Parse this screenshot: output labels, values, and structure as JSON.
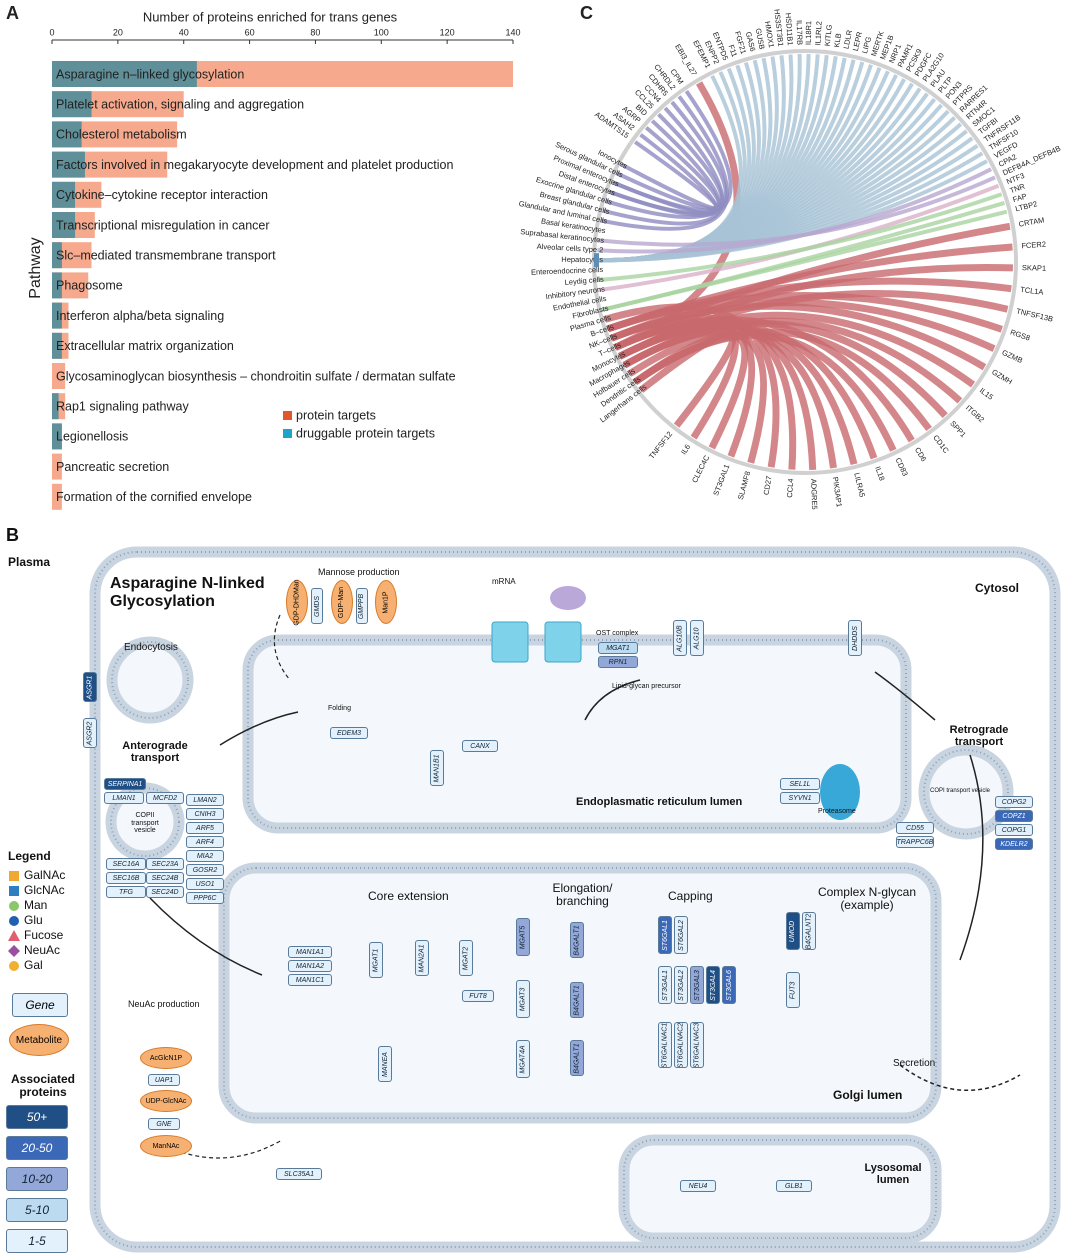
{
  "chart_data": [
    {
      "type": "bar",
      "orientation": "horizontal",
      "panel_label": "A",
      "title": "Number of proteins enriched for trans genes",
      "y_label": "Pathway",
      "categories": [
        "Asparagine n–linked glycosylation",
        "Platelet activation, signaling and aggregation",
        "Cholesterol metabolism",
        "Factors involved in megakaryocyte development and platelet production",
        "Cytokine–cytokine receptor interaction",
        "Transcriptional misregulation in cancer",
        "Slc–mediated transmembrane transport",
        "Phagosome",
        "Interferon alpha/beta signaling",
        "Extracellular matrix organization",
        "Glycosaminoglycan biosynthesis – chondroitin sulfate / dermatan sulfate",
        "Rap1 signaling pathway",
        "Legionellosis",
        "Pancreatic secretion",
        "Formation of the cornified envelope"
      ],
      "series": [
        {
          "name": "protein targets",
          "color": "#f6a98c",
          "marker_color": "#e2552d",
          "values": [
            140,
            40,
            38,
            35,
            15,
            13,
            12,
            11,
            5,
            5,
            4,
            4,
            3,
            3,
            3
          ]
        },
        {
          "name": "druggable protein targets",
          "color": "#5f8f99",
          "marker_color": "#1fa3c9",
          "values": [
            44,
            12,
            9,
            10,
            7,
            7,
            3,
            3,
            3,
            3,
            0,
            2,
            3,
            0,
            0
          ]
        }
      ],
      "overlap": true,
      "xlim": [
        0,
        140
      ],
      "xticks": [
        0,
        20,
        40,
        60,
        80,
        100,
        120,
        140
      ],
      "legend": "lower-right"
    },
    {
      "type": "chord",
      "panel_label": "C",
      "cells": [
        "Ionocytes",
        "Serous glandular cells",
        "Proximal enterocytes",
        "Distal enterocytes",
        "Exocrine glandular cells",
        "Breast glandular cells",
        "Glandular and luminal cells",
        "Basal keratinocytes",
        "Suprabasal keratinocytes",
        "Alveolar cells type 2",
        "Hepatocytes",
        "Enteroendocrine cells",
        "Leydig cells",
        "Inhibitory neurons",
        "Endothelial cells",
        "Fibroblasts",
        "Plasma cells",
        "B–cells",
        "NK–cells",
        "T–cells",
        "Monocytes",
        "Macrophages",
        "Hofbauer cells",
        "Dendritic cells",
        "Langerhans cells"
      ],
      "cell_color": "#5b8fb8",
      "genes": [
        {
          "label": "ADAMTS15",
          "color": "#8e8cc0",
          "cell": 0
        },
        {
          "label": "ASAH2",
          "color": "#8e8cc0",
          "cell": 2
        },
        {
          "label": "AGRP",
          "color": "#8e8cc0",
          "cell": 1
        },
        {
          "label": "BID",
          "color": "#8e8cc0",
          "cell": 3
        },
        {
          "label": "CCL25",
          "color": "#8e8cc0",
          "cell": 2
        },
        {
          "label": "CCN4",
          "color": "#8e8cc0",
          "cell": 5
        },
        {
          "label": "CDHR5",
          "color": "#8e8cc0",
          "cell": 3
        },
        {
          "label": "CHRDL2",
          "color": "#8e8cc0",
          "cell": 6
        },
        {
          "label": "CPM",
          "color": "#8e8cc0",
          "cell": 4
        },
        {
          "label": "EBI3_IL27",
          "color": "#c8696d",
          "cell": 19
        },
        {
          "label": "EFEMP1",
          "color": "#a8c3d6",
          "cell": 10
        },
        {
          "label": "ENPP2",
          "color": "#a8c3d6",
          "cell": 10
        },
        {
          "label": "ENTPD5",
          "color": "#a8c3d6",
          "cell": 10
        },
        {
          "label": "F11",
          "color": "#a8c3d6",
          "cell": 10
        },
        {
          "label": "FGF21",
          "color": "#a8c3d6",
          "cell": 10
        },
        {
          "label": "GAS6",
          "color": "#a8c3d6",
          "cell": 10
        },
        {
          "label": "GUSB",
          "color": "#a8c3d6",
          "cell": 10
        },
        {
          "label": "HMOX1",
          "color": "#a8c3d6",
          "cell": 10
        },
        {
          "label": "HS3ST3B1",
          "color": "#a8c3d6",
          "cell": 10
        },
        {
          "label": "HSD11B1",
          "color": "#a8c3d6",
          "cell": 10
        },
        {
          "label": "IL17RB",
          "color": "#a8c3d6",
          "cell": 10
        },
        {
          "label": "IL18R1",
          "color": "#a8c3d6",
          "cell": 10
        },
        {
          "label": "IL1RL2",
          "color": "#a8c3d6",
          "cell": 10
        },
        {
          "label": "KITLG",
          "color": "#a8c3d6",
          "cell": 10
        },
        {
          "label": "KLB",
          "color": "#a8c3d6",
          "cell": 10
        },
        {
          "label": "LDLR",
          "color": "#a8c3d6",
          "cell": 10
        },
        {
          "label": "LEPR",
          "color": "#a8c3d6",
          "cell": 10
        },
        {
          "label": "LIPG",
          "color": "#a8c3d6",
          "cell": 10
        },
        {
          "label": "MERTK",
          "color": "#a8c3d6",
          "cell": 10
        },
        {
          "label": "MEP1B",
          "color": "#a8c3d6",
          "cell": 10
        },
        {
          "label": "NRP1",
          "color": "#a8c3d6",
          "cell": 10
        },
        {
          "label": "PAMR1",
          "color": "#a8c3d6",
          "cell": 10
        },
        {
          "label": "PCSK9",
          "color": "#a8c3d6",
          "cell": 10
        },
        {
          "label": "PDGFC",
          "color": "#a8c3d6",
          "cell": 10
        },
        {
          "label": "PLA2G10",
          "color": "#a8c3d6",
          "cell": 10
        },
        {
          "label": "PLAU",
          "color": "#a8c3d6",
          "cell": 10
        },
        {
          "label": "PLTP",
          "color": "#a8c3d6",
          "cell": 10
        },
        {
          "label": "PON3",
          "color": "#a8c3d6",
          "cell": 10
        },
        {
          "label": "PTPRS",
          "color": "#a8c3d6",
          "cell": 10
        },
        {
          "label": "RARRES1",
          "color": "#a8c3d6",
          "cell": 10
        },
        {
          "label": "RTN4R",
          "color": "#a8c3d6",
          "cell": 10
        },
        {
          "label": "SMOC1",
          "color": "#a8c3d6",
          "cell": 10
        },
        {
          "label": "TGFBI",
          "color": "#a8c3d6",
          "cell": 10
        },
        {
          "label": "TNFRSF11B",
          "color": "#a8c3d6",
          "cell": 10
        },
        {
          "label": "TNFSF10",
          "color": "#a8c3d6",
          "cell": 10
        },
        {
          "label": "VEGFD",
          "color": "#a8c3d6",
          "cell": 10
        },
        {
          "label": "CPA2",
          "color": "#b8a6d0",
          "cell": 9
        },
        {
          "label": "DEFB4A_DEFB4B",
          "color": "#b8a6d0",
          "cell": 8
        },
        {
          "label": "NTF3",
          "color": "#d9b0c8",
          "cell": 13
        },
        {
          "label": "TNR",
          "color": "#a9d3a0",
          "cell": 12
        },
        {
          "label": "FAP",
          "color": "#a9d3a0",
          "cell": 15
        },
        {
          "label": "LTBP2",
          "color": "#a9d3a0",
          "cell": 15
        },
        {
          "label": "CRTAM",
          "color": "#c8696d",
          "cell": 18
        },
        {
          "label": "FCER2",
          "color": "#c8696d",
          "cell": 17
        },
        {
          "label": "SKAP1",
          "color": "#c8696d",
          "cell": 19
        },
        {
          "label": "TCL1A",
          "color": "#c8696d",
          "cell": 17
        },
        {
          "label": "TNFSF13B",
          "color": "#c8696d",
          "cell": 20
        },
        {
          "label": "RGS8",
          "color": "#c8696d",
          "cell": 17
        },
        {
          "label": "GZMB",
          "color": "#c8696d",
          "cell": 18
        },
        {
          "label": "GZMH",
          "color": "#c8696d",
          "cell": 18
        },
        {
          "label": "IL15",
          "color": "#c8696d",
          "cell": 20
        },
        {
          "label": "ITGB2",
          "color": "#c8696d",
          "cell": 21
        },
        {
          "label": "SPP1",
          "color": "#c8696d",
          "cell": 21
        },
        {
          "label": "CD1C",
          "color": "#c8696d",
          "cell": 23
        },
        {
          "label": "CD6",
          "color": "#c8696d",
          "cell": 19
        },
        {
          "label": "CD83",
          "color": "#c8696d",
          "cell": 23
        },
        {
          "label": "IL18",
          "color": "#c8696d",
          "cell": 20
        },
        {
          "label": "LILRA5",
          "color": "#c8696d",
          "cell": 20
        },
        {
          "label": "PIK3AP1",
          "color": "#c8696d",
          "cell": 21
        },
        {
          "label": "ADGRE5",
          "color": "#c8696d",
          "cell": 19
        },
        {
          "label": "CCL4",
          "color": "#c8696d",
          "cell": 18
        },
        {
          "label": "CD27",
          "color": "#c8696d",
          "cell": 16
        },
        {
          "label": "SLAMF8",
          "color": "#c8696d",
          "cell": 22
        },
        {
          "label": "ST3GAL1",
          "color": "#c8696d",
          "cell": 19
        },
        {
          "label": "CLEC4C",
          "color": "#c8696d",
          "cell": 23
        },
        {
          "label": "IL6",
          "color": "#c8696d",
          "cell": 20
        },
        {
          "label": "TNFSF12",
          "color": "#c8696d",
          "cell": 24
        }
      ]
    }
  ],
  "diagram": {
    "panel_label": "B",
    "title": "Asparagine N-linked Glycosylation",
    "labels": [
      "Plasma",
      "Cytosol",
      "Endocytosis",
      "Mannose production",
      "mRNA",
      "OST complex",
      "Folding",
      "Lipid-glycan precursor",
      "Proteasome",
      "Anterograde transport",
      "COPII transport vesicle",
      "Endoplasmatic reticulum lumen",
      "Retrograde transport",
      "COPI transport vesicle",
      "Core extension",
      "Elongation/ branching",
      "Capping",
      "Complex N-glycan (example)",
      "NeuAc production",
      "Secretion",
      "Golgi lumen",
      "Lysosomal lumen"
    ],
    "metabolites": [
      "GDP-DHDMan",
      "GDP-Man",
      "Man1P",
      "AcGlcN1P",
      "UDP-GlcNAc",
      "ManNAc"
    ],
    "genes": [
      {
        "label": "ASGR1",
        "level": 0
      },
      {
        "label": "ASGR2",
        "level": 4
      },
      {
        "label": "GMDS",
        "level": 4
      },
      {
        "label": "GMPPB",
        "level": 4
      },
      {
        "label": "MGAT1",
        "level": 3
      },
      {
        "label": "RPN1",
        "level": 2
      },
      {
        "label": "ALG10B",
        "level": 4
      },
      {
        "label": "ALG10",
        "level": 4
      },
      {
        "label": "DHDDS",
        "level": 4
      },
      {
        "label": "EDEM3",
        "level": 4
      },
      {
        "label": "MAN1B1",
        "level": 4
      },
      {
        "label": "CANX",
        "level": 4
      },
      {
        "label": "SEL1L",
        "level": 4
      },
      {
        "label": "SYVN1",
        "level": 4
      },
      {
        "label": "SERPINA1",
        "level": 0
      },
      {
        "label": "LMAN1",
        "level": 4
      },
      {
        "label": "MCFD2",
        "level": 4
      },
      {
        "label": "LMAN2",
        "level": 4
      },
      {
        "label": "CNIH3",
        "level": 4
      },
      {
        "label": "ARF5",
        "level": 4
      },
      {
        "label": "ARF4",
        "level": 4
      },
      {
        "label": "MIA2",
        "level": 4
      },
      {
        "label": "GOSR2",
        "level": 4
      },
      {
        "label": "USO1",
        "level": 4
      },
      {
        "label": "PPP6C",
        "level": 4
      },
      {
        "label": "SEC16A",
        "level": 4
      },
      {
        "label": "SEC16B",
        "level": 4
      },
      {
        "label": "TFG",
        "level": 4
      },
      {
        "label": "SEC23A",
        "level": 4
      },
      {
        "label": "SEC24B",
        "level": 4
      },
      {
        "label": "SEC24D",
        "level": 4
      },
      {
        "label": "COPG2",
        "level": 4
      },
      {
        "label": "COPZ1",
        "level": 1
      },
      {
        "label": "COPG1",
        "level": 4
      },
      {
        "label": "KDELR2",
        "level": 1
      },
      {
        "label": "CD55",
        "level": 4
      },
      {
        "label": "TRAPPC6B",
        "level": 4
      },
      {
        "label": "MAN1A1",
        "level": 4
      },
      {
        "label": "MAN1A2",
        "level": 4
      },
      {
        "label": "MAN1C1",
        "level": 4
      },
      {
        "label": "MGAT1",
        "level": 4
      },
      {
        "label": "MAN2A1",
        "level": 4
      },
      {
        "label": "MGAT2",
        "level": 4
      },
      {
        "label": "FUT8",
        "level": 4
      },
      {
        "label": "MGAT5",
        "level": 2
      },
      {
        "label": "MGAT3",
        "level": 4
      },
      {
        "label": "MGAT4A",
        "level": 4
      },
      {
        "label": "B4GALT1",
        "level": 2
      },
      {
        "label": "B4GALT1",
        "level": 2
      },
      {
        "label": "B4GALT1",
        "level": 2
      },
      {
        "label": "ST6GAL1",
        "level": 1
      },
      {
        "label": "ST6GAL2",
        "level": 4
      },
      {
        "label": "ST3GAL1",
        "level": 4
      },
      {
        "label": "ST3GAL2",
        "level": 4
      },
      {
        "label": "ST3GAL3",
        "level": 2
      },
      {
        "label": "ST3GAL4",
        "level": 0
      },
      {
        "label": "ST3GAL6",
        "level": 1
      },
      {
        "label": "ST6GALNAC1",
        "level": 4
      },
      {
        "label": "ST6GALNAC2",
        "level": 4
      },
      {
        "label": "ST6GALNAC3",
        "level": 4
      },
      {
        "label": "UMOD",
        "level": 0
      },
      {
        "label": "B4GALNT2",
        "level": 4
      },
      {
        "label": "FUT3",
        "level": 4
      },
      {
        "label": "MANEA",
        "level": 4
      },
      {
        "label": "UAP1",
        "level": 4
      },
      {
        "label": "GNE",
        "level": 4
      },
      {
        "label": "SLC35A1",
        "level": 4
      },
      {
        "label": "NEU4",
        "level": 4
      },
      {
        "label": "GLB1",
        "level": 4
      }
    ],
    "legend": {
      "title": "Legend",
      "items": [
        {
          "label": "GalNAc",
          "shape": "square",
          "color": "#f0a830"
        },
        {
          "label": "GlcNAc",
          "shape": "square",
          "color": "#2f7fc0"
        },
        {
          "label": "Man",
          "shape": "circle",
          "color": "#8cc66a"
        },
        {
          "label": "Glu",
          "shape": "circle",
          "color": "#2060b0"
        },
        {
          "label": "Fucose",
          "shape": "triangle",
          "color": "#e06070"
        },
        {
          "label": "NeuAc",
          "shape": "diamond",
          "color": "#9b4fa0"
        },
        {
          "label": "Gal",
          "shape": "circle",
          "color": "#f0b030"
        }
      ],
      "gene": "Gene",
      "metabolite": "Metabolite",
      "proteins_title": "Associated proteins",
      "levels": [
        {
          "label": "50+",
          "color": "#1f4f85"
        },
        {
          "label": "20-50",
          "color": "#3b69b8"
        },
        {
          "label": "10-20",
          "color": "#93a8d8"
        },
        {
          "label": "5-10",
          "color": "#bcdaf0"
        },
        {
          "label": "1-5",
          "color": "#e2f1fb"
        }
      ]
    }
  }
}
